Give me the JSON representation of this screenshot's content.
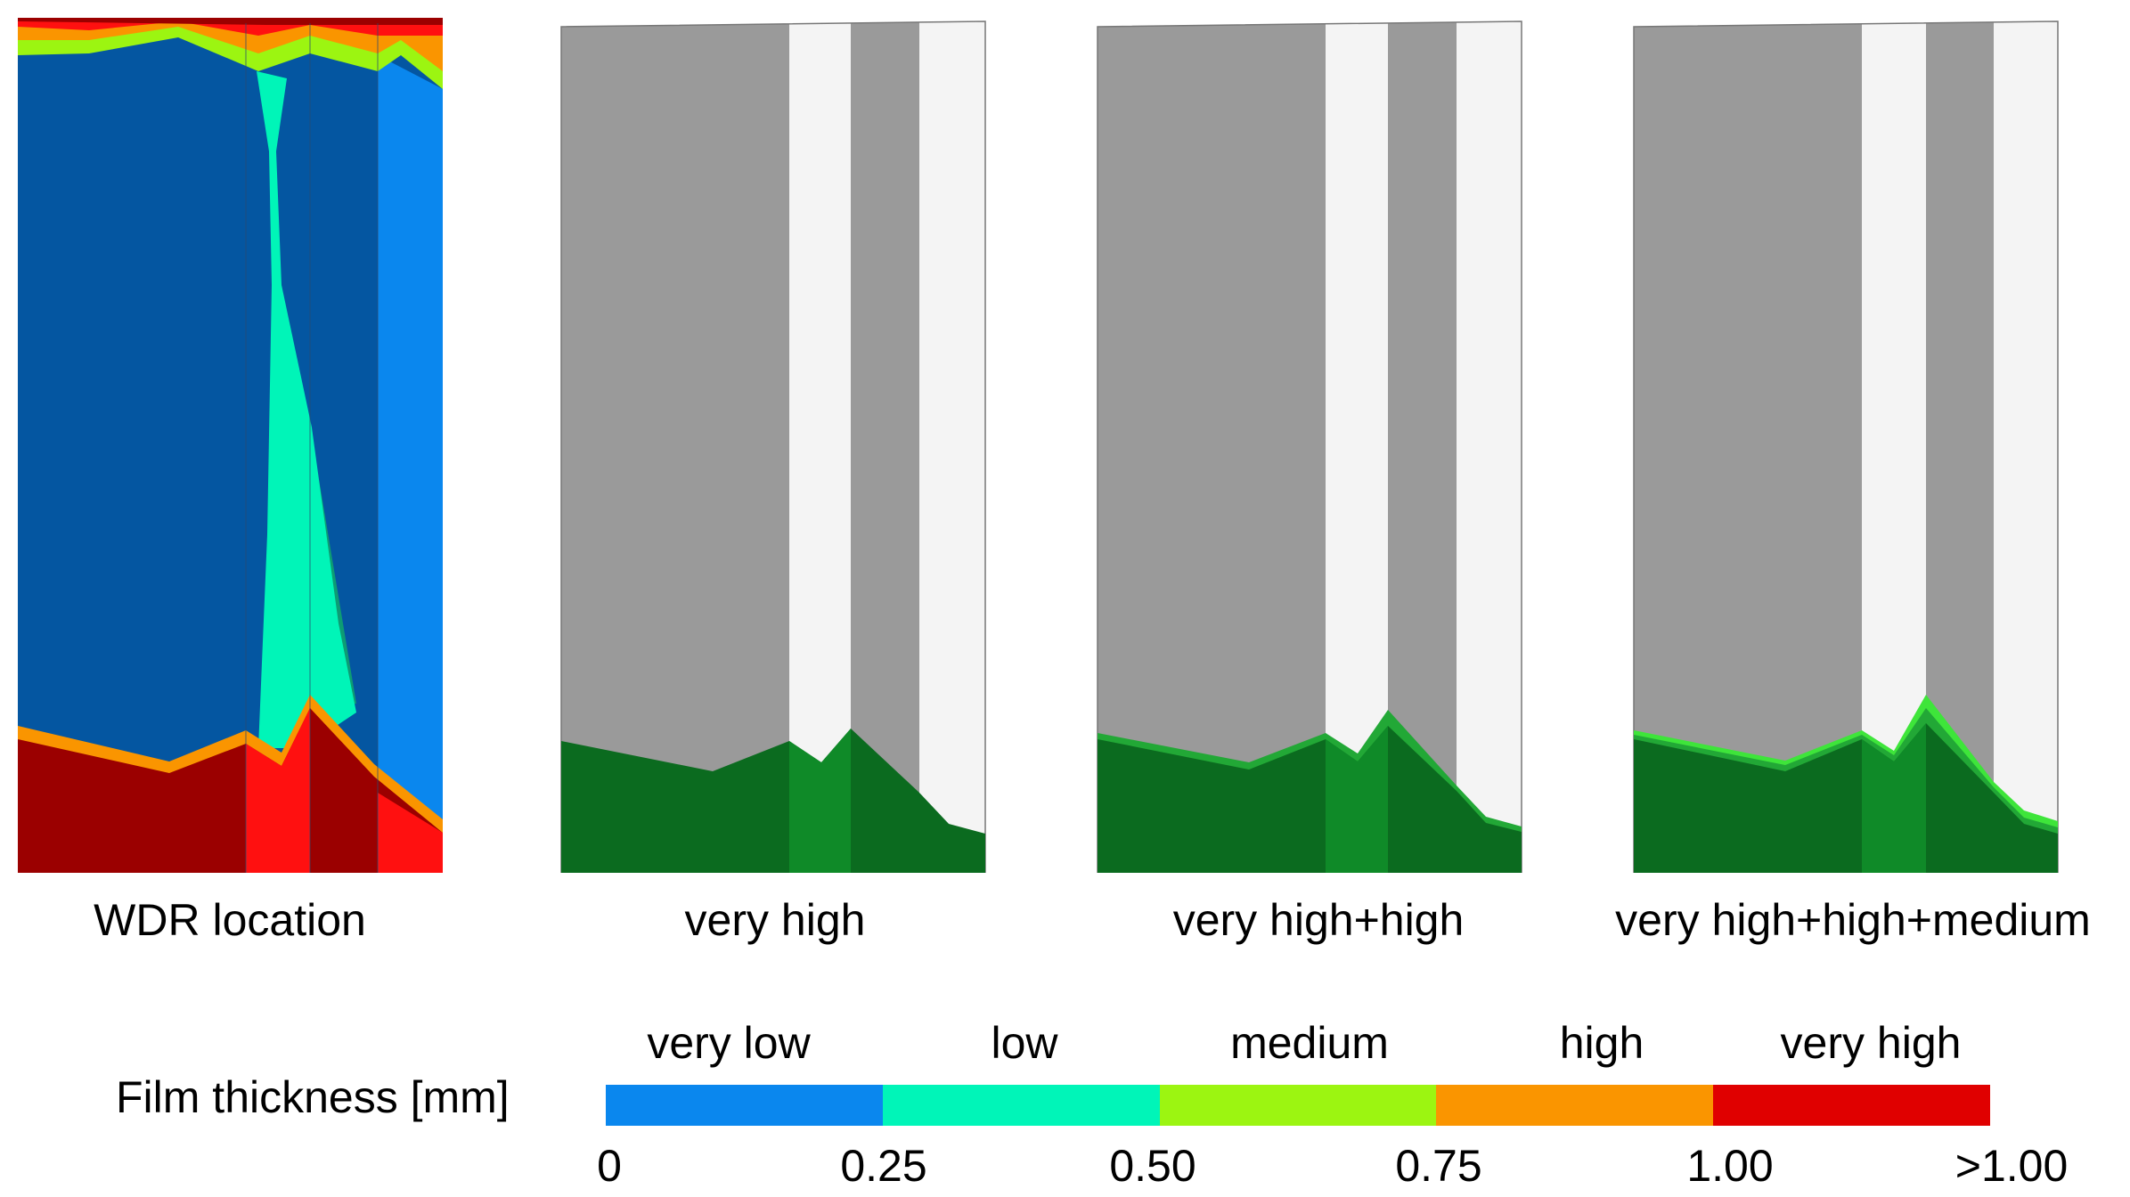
{
  "panels": [
    {
      "id": "wdr",
      "title": "WDR location"
    },
    {
      "id": "vh",
      "title": "very high"
    },
    {
      "id": "vhh",
      "title": "very high+high"
    },
    {
      "id": "vhhm",
      "title": "very high+high+medium"
    }
  ],
  "legend": {
    "title": "Film thickness [mm]",
    "levels": [
      {
        "label": "very low",
        "color": "#0a87ee"
      },
      {
        "label": "low",
        "color": "#00f5b8"
      },
      {
        "label": "medium",
        "color": "#9cf511"
      },
      {
        "label": "high",
        "color": "#fa9500"
      },
      {
        "label": "very high",
        "color": "#e00000"
      }
    ],
    "ticks": [
      "0",
      "0.25",
      "0.50",
      "0.75",
      "1.00",
      ">1.00"
    ]
  },
  "colors": {
    "facade_gray": "#9a9a9a",
    "facade_white": "#f4f4f4",
    "wet_green": "#0b6b1f",
    "wet_green_face": "#0f8a28",
    "green_high": "#22a836",
    "green_medium": "#3ee53a",
    "wdr_dark_blue": "#0456a1",
    "wdr_blue": "#0a87ee",
    "wdr_cyan": "#00f5b8",
    "wdr_teal": "#0d9c74",
    "wdr_dark_red": "#9b0000",
    "wdr_red": "#ff1010"
  }
}
